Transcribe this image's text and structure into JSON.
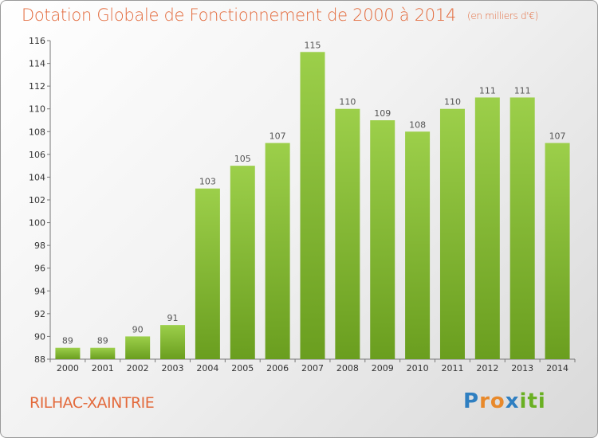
{
  "title": "Dotation Globale de Fonctionnement de 2000 à 2014",
  "unit": "(en milliers d'€)",
  "place": "RILHAC-XAINTRIE",
  "logo": {
    "text": "Proxiti",
    "letters": [
      "P",
      "r",
      "o",
      "x",
      "i",
      "t",
      "i"
    ],
    "colors": [
      "#2f7fc1",
      "#e8892b",
      "#e8892b",
      "#2f7fc1",
      "#6ab023",
      "#6ab023",
      "#6ab023"
    ]
  },
  "colors": {
    "bar_light": "#9ccf4a",
    "bar_dark": "#6a9e1f",
    "title": "#e36a3c"
  },
  "chart_data": {
    "type": "bar",
    "title": "Dotation Globale de Fonctionnement de 2000 à 2014",
    "subtitle": "(en milliers d'€)",
    "categories": [
      "2000",
      "2001",
      "2002",
      "2003",
      "2004",
      "2005",
      "2006",
      "2007",
      "2008",
      "2009",
      "2010",
      "2011",
      "2012",
      "2013",
      "2014"
    ],
    "values": [
      89,
      89,
      90,
      91,
      103,
      105,
      107,
      115,
      110,
      109,
      108,
      110,
      111,
      111,
      107
    ],
    "ylim": [
      88,
      116
    ],
    "yticks": [
      88,
      90,
      92,
      94,
      96,
      98,
      100,
      102,
      104,
      106,
      108,
      110,
      112,
      114,
      116
    ],
    "xlabel": "",
    "ylabel": "",
    "grid": false
  }
}
